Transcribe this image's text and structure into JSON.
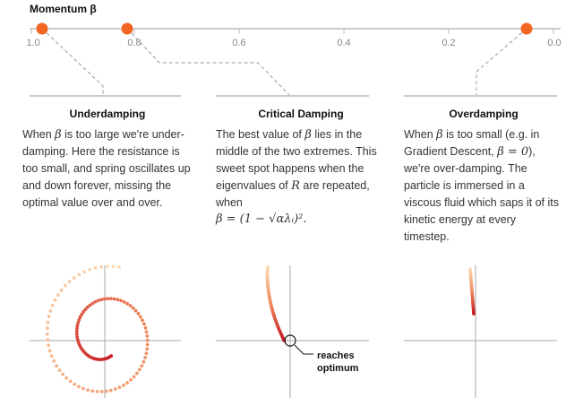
{
  "header": {
    "title_text": "Momentum ",
    "title_symbol": "β"
  },
  "slider": {
    "ticks": [
      "1.0",
      "0.8",
      "0.6",
      "0.4",
      "0.2",
      "0.0"
    ],
    "handle_color": "#f26522"
  },
  "columns": [
    {
      "heading": "Underdamping",
      "p1": "When ",
      "p2": "β",
      "p3": " is too large we're under-damping. Here the resistance is too small, and spring oscillates up and down forever, missing the optimal value over and over."
    },
    {
      "heading": "Critical Damping",
      "p1": "The best value of ",
      "p2": "β",
      "p3": " lies in the middle of the two extremes. This sweet spot happens when the eigenvalues of ",
      "p4": "R",
      "p5": " are repeated, when",
      "formula": "β = (1 − √αλᵢ)²."
    },
    {
      "heading": "Overdamping",
      "p1": "When ",
      "p2": "β",
      "p3": " is too small (e.g. in Gradient Descent, ",
      "p4": "β = 0",
      "p5": "), we're over-damping. The particle is immersed in a viscous fluid which saps it of its kinetic energy at every timestep."
    }
  ],
  "annotation": {
    "line1": "reaches",
    "line2": "optimum"
  },
  "colors": {
    "light": "#fdd9b5",
    "mid": "#f08a5d",
    "dark": "#c81d25",
    "axis": "#aaaaaa"
  }
}
